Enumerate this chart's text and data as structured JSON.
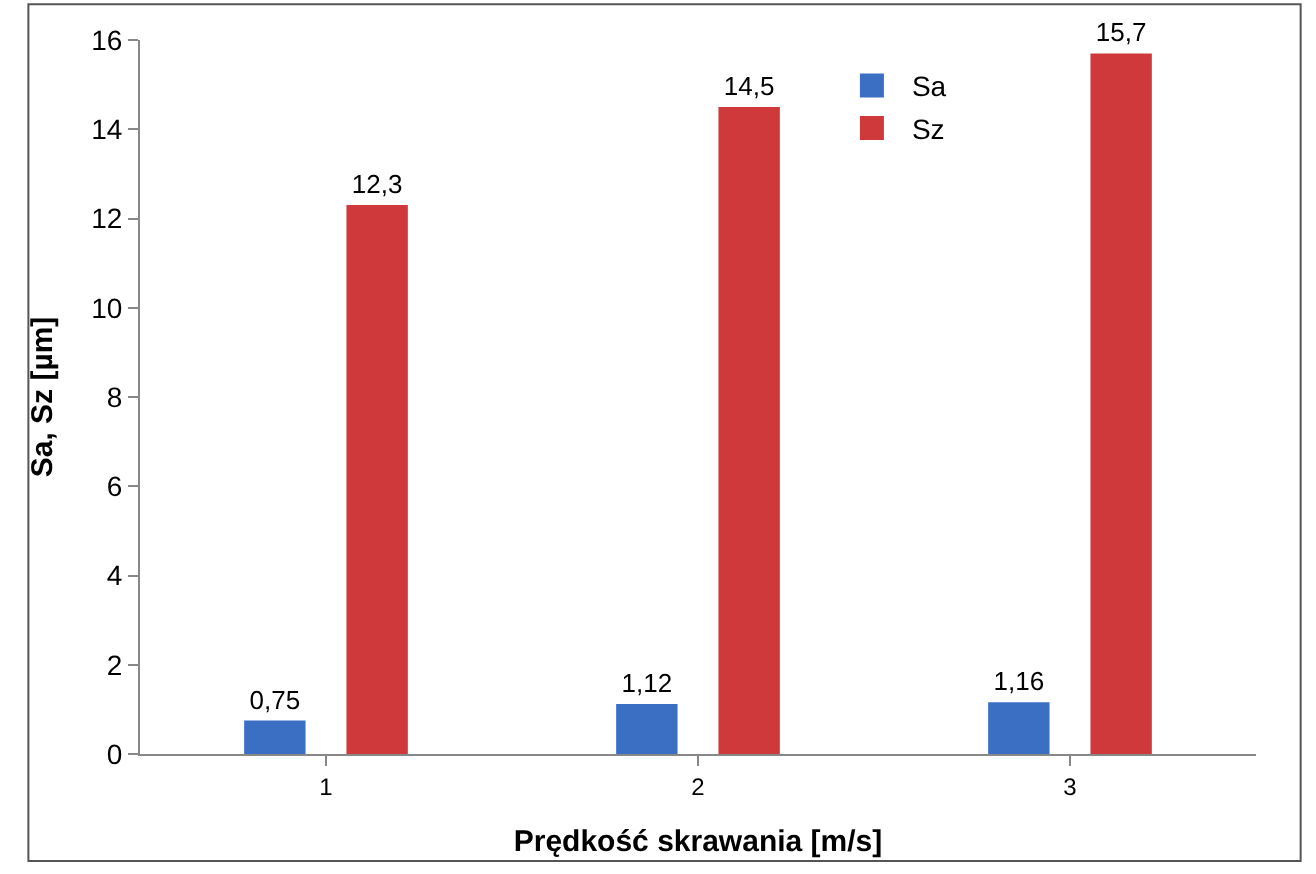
{
  "chart_data": {
    "type": "bar",
    "xlabel": "Prędkość skrawania [m/s]",
    "ylabel": "Sa, Sz [µm]",
    "categories": [
      "1",
      "2",
      "3"
    ],
    "series": [
      {
        "name": "Sa",
        "color": "#3a6fc4",
        "values": [
          0.75,
          1.12,
          1.16
        ],
        "value_labels": [
          "0,75",
          "1,12",
          "1,16"
        ]
      },
      {
        "name": "Sz",
        "color": "#d0393b",
        "values": [
          12.3,
          14.5,
          15.7
        ],
        "value_labels": [
          "12,3",
          "14,5",
          "15,7"
        ]
      }
    ],
    "ylim": [
      0,
      16
    ],
    "yticks": [
      0,
      2,
      4,
      6,
      8,
      10,
      12,
      14,
      16
    ],
    "grid": false,
    "legend": "top right"
  }
}
